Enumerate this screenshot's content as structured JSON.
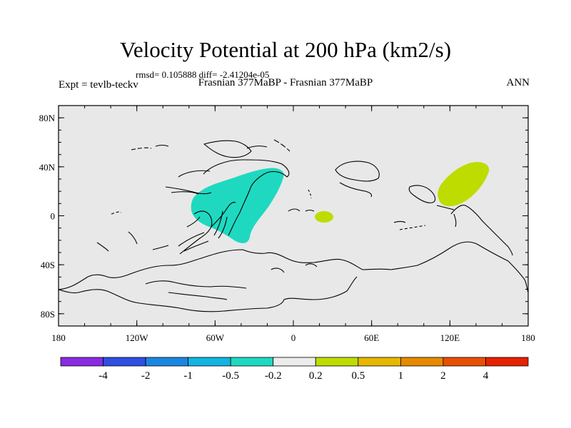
{
  "title": "Velocity Potential at 200 hPa (km2/s)",
  "stats": "rmsd= 0.105888 diff= -2.41204e-05",
  "left_label": "Expt = tevlb-teckv",
  "center_label": "Frasnian 377MaBP - Frasnian 377MaBP",
  "right_label": "ANN",
  "lat_labels": [
    "80N",
    "40N",
    "0",
    "40S",
    "80S"
  ],
  "lon_labels": [
    "180",
    "120W",
    "60W",
    "0",
    "60E",
    "120E",
    "180"
  ],
  "colorbar": {
    "colors": [
      "#8a2be2",
      "#2e4fe0",
      "#1a86e0",
      "#12b4e0",
      "#1ed9c0",
      "#ececec",
      "#bedc00",
      "#e6b800",
      "#e68a00",
      "#e65000",
      "#e62200"
    ],
    "labels": [
      "-4",
      "-2",
      "-1",
      "-0.5",
      "-0.2",
      "0.2",
      "0.5",
      "1",
      "2",
      "4"
    ]
  },
  "fills": {
    "negative_color": "#1ed9c0",
    "positive_color": "#bedc00",
    "background_color": "#e8e8e8"
  }
}
